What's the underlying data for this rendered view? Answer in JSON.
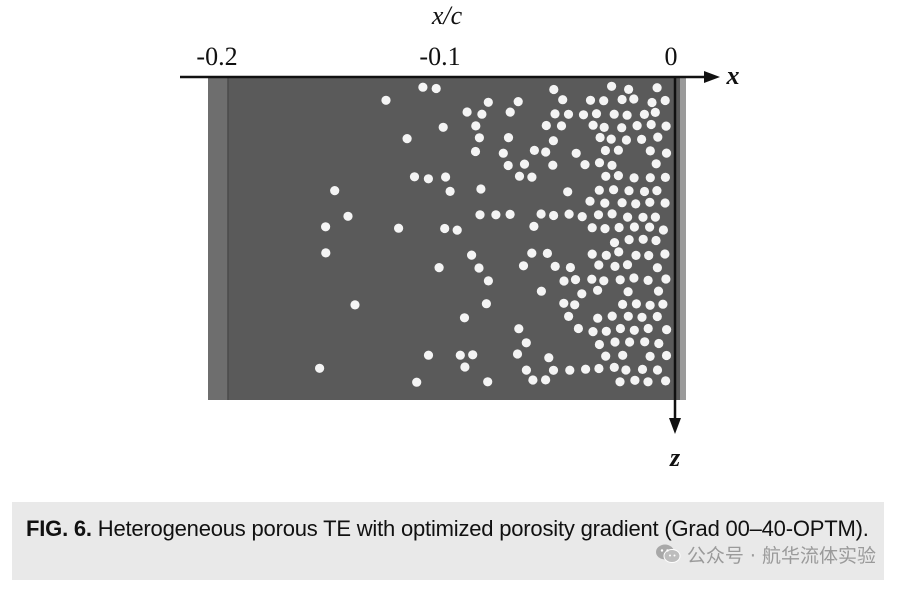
{
  "figure": {
    "x_axis_label": "x/c",
    "x_axis_end_label": "x",
    "z_axis_label": "z",
    "x_ticks": [
      "-0.2",
      "-0.1",
      "0"
    ],
    "colors": {
      "material": "#5a5a5a",
      "edge_strip": "#6e6e6e",
      "pore": "#f4f4f4",
      "axis": "#111111"
    }
  },
  "caption": {
    "figure_number": "FIG. 6.",
    "text": " Heterogeneous porous TE with optimized porosity gradient (Grad 00–40-OPTM)."
  },
  "watermark": {
    "icon": "wechat-icon",
    "text": "公众号 · 航华流体实验"
  }
}
